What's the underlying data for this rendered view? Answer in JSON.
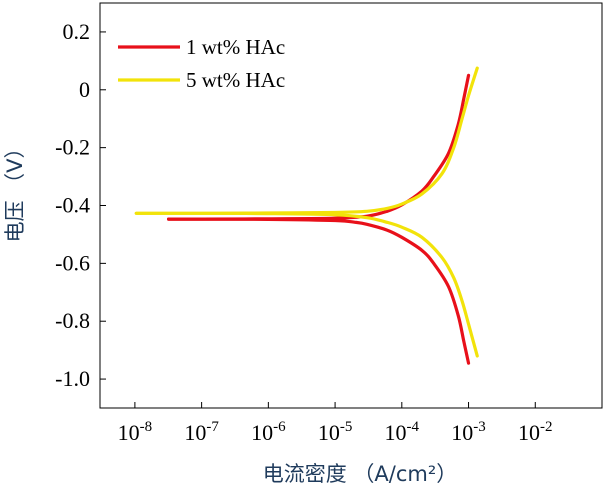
{
  "chart_data": {
    "type": "line",
    "xlabel": "电流密度 （A/cm²）",
    "ylabel": "电压 （V）",
    "x_scale": "log",
    "xlim": [
      3e-09,
      0.1
    ],
    "ylim": [
      -1.1,
      0.3
    ],
    "x_ticks": [
      {
        "label_base": "10",
        "label_exp": "-8"
      },
      {
        "label_base": "10",
        "label_exp": "-7"
      },
      {
        "label_base": "10",
        "label_exp": "-6"
      },
      {
        "label_base": "10",
        "label_exp": "-5"
      },
      {
        "label_base": "10",
        "label_exp": "-4"
      },
      {
        "label_base": "10",
        "label_exp": "-3"
      },
      {
        "label_base": "10",
        "label_exp": "-2"
      }
    ],
    "x_tick_values": [
      1e-08,
      1e-07,
      1e-06,
      1e-05,
      0.0001,
      0.001,
      0.01
    ],
    "y_ticks": [
      "0.2",
      "0",
      "-0.2",
      "-0.4",
      "-0.6",
      "-0.8",
      "-1.0"
    ],
    "y_tick_values": [
      0.2,
      0,
      -0.2,
      -0.4,
      -0.6,
      -0.8,
      -1.0
    ],
    "legend_position": "top-left",
    "grid": false,
    "series": [
      {
        "name": "1 wt% HAc",
        "color": "#e8101a",
        "anodic": [
          [
            3.2e-08,
            -0.447
          ],
          [
            1e-07,
            -0.447
          ],
          [
            1e-06,
            -0.446
          ],
          [
            1e-05,
            -0.444
          ],
          [
            3e-05,
            -0.437
          ],
          [
            6e-05,
            -0.42
          ],
          [
            0.0001,
            -0.398
          ],
          [
            0.0002,
            -0.35
          ],
          [
            0.0003,
            -0.3
          ],
          [
            0.0005,
            -0.22
          ],
          [
            0.0007,
            -0.12
          ],
          [
            0.00085,
            -0.03
          ],
          [
            0.001,
            0.05
          ]
        ],
        "cathodic": [
          [
            3.2e-08,
            -0.447
          ],
          [
            1e-07,
            -0.447
          ],
          [
            1e-06,
            -0.448
          ],
          [
            1e-05,
            -0.452
          ],
          [
            2e-05,
            -0.458
          ],
          [
            3e-05,
            -0.465
          ],
          [
            6e-05,
            -0.485
          ],
          [
            0.0001,
            -0.51
          ],
          [
            0.0002,
            -0.555
          ],
          [
            0.0003,
            -0.6
          ],
          [
            0.0005,
            -0.68
          ],
          [
            0.0007,
            -0.78
          ],
          [
            0.00085,
            -0.87
          ],
          [
            0.001,
            -0.945
          ]
        ]
      },
      {
        "name": "5 wt% HAc",
        "color": "#f2e30a",
        "anodic": [
          [
            1.05e-08,
            -0.427
          ],
          [
            1e-07,
            -0.427
          ],
          [
            1e-06,
            -0.426
          ],
          [
            1e-05,
            -0.424
          ],
          [
            3e-05,
            -0.42
          ],
          [
            6e-05,
            -0.41
          ],
          [
            0.0001,
            -0.395
          ],
          [
            0.0002,
            -0.36
          ],
          [
            0.0004,
            -0.29
          ],
          [
            0.0006,
            -0.2
          ],
          [
            0.0008,
            -0.1
          ],
          [
            0.001,
            -0.02
          ],
          [
            0.00135,
            0.075
          ]
        ],
        "cathodic": [
          [
            1.05e-08,
            -0.427
          ],
          [
            1e-07,
            -0.427
          ],
          [
            1e-06,
            -0.428
          ],
          [
            1e-05,
            -0.432
          ],
          [
            3e-05,
            -0.442
          ],
          [
            6e-05,
            -0.458
          ],
          [
            0.0001,
            -0.475
          ],
          [
            0.0002,
            -0.51
          ],
          [
            0.0004,
            -0.58
          ],
          [
            0.0006,
            -0.65
          ],
          [
            0.0008,
            -0.73
          ],
          [
            0.001,
            -0.81
          ],
          [
            0.00135,
            -0.92
          ]
        ]
      }
    ]
  }
}
